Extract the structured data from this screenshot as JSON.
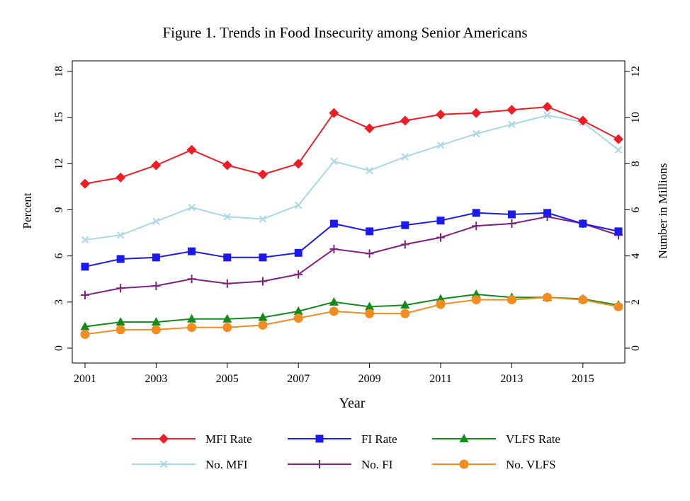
{
  "chart_data": {
    "type": "line",
    "title": "Figure 1.  Trends in Food Insecurity among Senior Americans",
    "xlabel": "Year",
    "ylabel_left": "Percent",
    "ylabel_right": "Number in Millions",
    "x": [
      2001,
      2002,
      2003,
      2004,
      2005,
      2006,
      2007,
      2008,
      2009,
      2010,
      2011,
      2012,
      2013,
      2014,
      2015,
      2016
    ],
    "x_ticks": [
      2001,
      2003,
      2005,
      2007,
      2009,
      2011,
      2013,
      2015
    ],
    "xlim": [
      2001,
      2016
    ],
    "ylim_left": [
      0,
      18
    ],
    "y_ticks_left": [
      0,
      3,
      6,
      9,
      12,
      15,
      18
    ],
    "ylim_right": [
      0,
      12
    ],
    "y_ticks_right": [
      0,
      2,
      4,
      6,
      8,
      10,
      12
    ],
    "grid": false,
    "legend_position": "bottom",
    "series": [
      {
        "name": "MFI Rate",
        "axis": "left",
        "color": "#ee1c24",
        "marker": "diamond",
        "values": [
          10.7,
          11.1,
          11.9,
          12.9,
          11.9,
          11.3,
          12.0,
          15.3,
          14.3,
          14.8,
          15.2,
          15.3,
          15.5,
          15.7,
          14.8,
          13.6
        ]
      },
      {
        "name": "FI Rate",
        "axis": "left",
        "color": "#1a1aee",
        "marker": "square",
        "values": [
          5.3,
          5.8,
          5.9,
          6.3,
          5.9,
          5.9,
          6.2,
          8.1,
          7.6,
          8.0,
          8.3,
          8.8,
          8.7,
          8.8,
          8.1,
          7.6
        ]
      },
      {
        "name": "VLFS Rate",
        "axis": "left",
        "color": "#138a1c",
        "marker": "triangle",
        "values": [
          1.4,
          1.7,
          1.7,
          1.9,
          1.9,
          2.0,
          2.4,
          3.0,
          2.7,
          2.8,
          3.2,
          3.5,
          3.3,
          3.3,
          3.2,
          2.8
        ]
      },
      {
        "name": "No. MFI",
        "axis": "right",
        "color": "#a8d8e4",
        "marker": "x",
        "values": [
          4.7,
          4.9,
          5.5,
          6.1,
          5.7,
          5.6,
          6.2,
          8.1,
          7.7,
          8.3,
          8.8,
          9.3,
          9.7,
          10.1,
          9.8,
          8.6
        ]
      },
      {
        "name": "No. FI",
        "axis": "right",
        "color": "#80207e",
        "marker": "plus",
        "values": [
          2.3,
          2.6,
          2.7,
          3.0,
          2.8,
          2.9,
          3.2,
          4.3,
          4.1,
          4.5,
          4.8,
          5.3,
          5.4,
          5.7,
          5.4,
          4.9
        ]
      },
      {
        "name": "No. VLFS",
        "axis": "right",
        "color": "#f28c1e",
        "marker": "circle",
        "values": [
          0.6,
          0.8,
          0.8,
          0.9,
          0.9,
          1.0,
          1.3,
          1.6,
          1.5,
          1.5,
          1.9,
          2.1,
          2.1,
          2.2,
          2.1,
          1.8
        ]
      }
    ]
  }
}
